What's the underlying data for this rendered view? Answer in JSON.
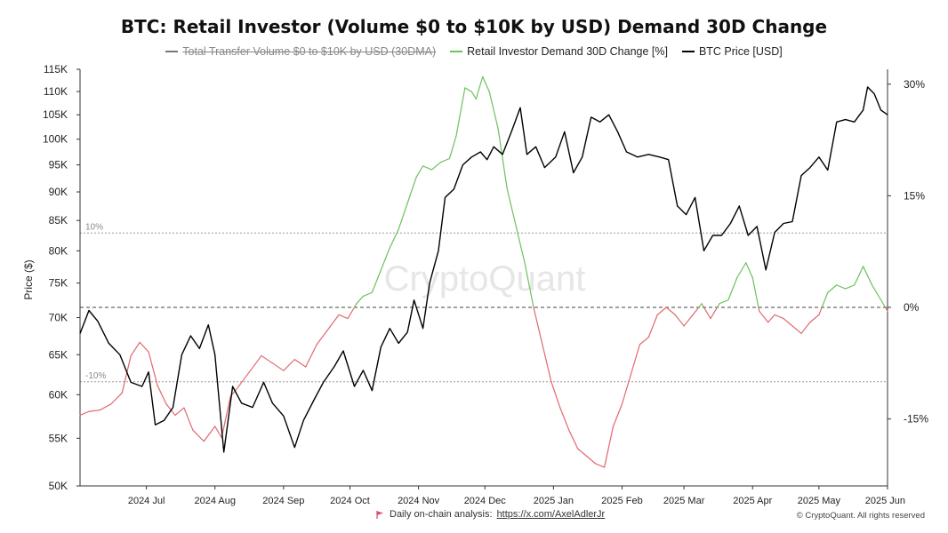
{
  "chart_data": {
    "type": "line",
    "title": "BTC: Retail Investor (Volume $0 to $10K by USD) Demand 30D Change",
    "ylabel": "Price ($)",
    "y_left": {
      "scale": "log",
      "range": [
        50000,
        115000
      ],
      "tick_values": [
        50000,
        55000,
        60000,
        65000,
        70000,
        75000,
        80000,
        85000,
        90000,
        95000,
        100000,
        105000,
        110000,
        115000
      ],
      "tick_labels": [
        "50K",
        "55K",
        "60K",
        "65K",
        "70K",
        "75K",
        "80K",
        "85K",
        "90K",
        "95K",
        "100K",
        "105K",
        "110K",
        "115K"
      ]
    },
    "y_right": {
      "scale": "linear",
      "range": [
        -24,
        32
      ],
      "tick_values": [
        30,
        15,
        0,
        -15
      ],
      "tick_labels": [
        "30%",
        "15%",
        "0%",
        "-15%"
      ]
    },
    "x_axis": {
      "range": [
        "2024-06-01",
        "2025-06-01"
      ],
      "tick_values": [
        "2024-07-01",
        "2024-08-01",
        "2024-09-01",
        "2024-10-01",
        "2024-11-01",
        "2024-12-01",
        "2025-01-01",
        "2025-02-01",
        "2025-03-01",
        "2025-04-01",
        "2025-05-01",
        "2025-06-01"
      ],
      "tick_labels": [
        "2024 Jul",
        "2024 Aug",
        "2024 Sep",
        "2024 Oct",
        "2024 Nov",
        "2024 Dec",
        "2025 Jan",
        "2025 Feb",
        "2025 Mar",
        "2025 Apr",
        "2025 May",
        "2025 Jun"
      ]
    },
    "reference_lines": [
      {
        "value": 10,
        "label": "10%",
        "style": "dotted"
      },
      {
        "value": 0,
        "label": "",
        "style": "dashed"
      },
      {
        "value": -10,
        "label": "-10%",
        "style": "dotted"
      }
    ],
    "grid": false,
    "legend_position": "top-center",
    "colors": {
      "price": "#000000",
      "demand_positive": "#6cc15c",
      "demand_negative": "#e0686d",
      "total_volume": "#777777",
      "reference": "#999999"
    },
    "series": [
      {
        "name": "Total Transfer Volume $0 to $10K by USD (30DMA)",
        "visible": false,
        "points": []
      },
      {
        "name": "Retail Investor Demand 30D Change [%]",
        "axis": "right",
        "points": [
          [
            "2024-06-01",
            -14.5
          ],
          [
            "2024-06-05",
            -14.0
          ],
          [
            "2024-06-10",
            -13.8
          ],
          [
            "2024-06-15",
            -13.0
          ],
          [
            "2024-06-20",
            -11.5
          ],
          [
            "2024-06-24",
            -6.5
          ],
          [
            "2024-06-28",
            -4.7
          ],
          [
            "2024-07-02",
            -6.0
          ],
          [
            "2024-07-06",
            -10.5
          ],
          [
            "2024-07-10",
            -13.0
          ],
          [
            "2024-07-14",
            -14.5
          ],
          [
            "2024-07-18",
            -13.5
          ],
          [
            "2024-07-22",
            -16.5
          ],
          [
            "2024-07-27",
            -18.0
          ],
          [
            "2024-08-01",
            -16.0
          ],
          [
            "2024-08-04",
            -17.5
          ],
          [
            "2024-08-08",
            -12.0
          ],
          [
            "2024-08-12",
            -10.5
          ],
          [
            "2024-08-17",
            -8.5
          ],
          [
            "2024-08-22",
            -6.5
          ],
          [
            "2024-08-27",
            -7.5
          ],
          [
            "2024-09-01",
            -8.5
          ],
          [
            "2024-09-06",
            -7.0
          ],
          [
            "2024-09-11",
            -8.0
          ],
          [
            "2024-09-16",
            -5.0
          ],
          [
            "2024-09-21",
            -3.0
          ],
          [
            "2024-09-26",
            -1.0
          ],
          [
            "2024-09-30",
            -1.5
          ],
          [
            "2024-10-04",
            0.5
          ],
          [
            "2024-10-07",
            1.5
          ],
          [
            "2024-10-11",
            2.0
          ],
          [
            "2024-10-15",
            5.0
          ],
          [
            "2024-10-19",
            8.0
          ],
          [
            "2024-10-23",
            10.5
          ],
          [
            "2024-10-27",
            14.0
          ],
          [
            "2024-10-31",
            17.5
          ],
          [
            "2024-11-03",
            19.0
          ],
          [
            "2024-11-07",
            18.5
          ],
          [
            "2024-11-11",
            19.5
          ],
          [
            "2024-11-15",
            20.0
          ],
          [
            "2024-11-18",
            23.0
          ],
          [
            "2024-11-22",
            29.5
          ],
          [
            "2024-11-25",
            29.0
          ],
          [
            "2024-11-27",
            28.0
          ],
          [
            "2024-11-30",
            31.0
          ],
          [
            "2024-12-03",
            29.0
          ],
          [
            "2024-12-07",
            24.0
          ],
          [
            "2024-12-11",
            16.0
          ],
          [
            "2024-12-15",
            11.0
          ],
          [
            "2024-12-19",
            6.0
          ],
          [
            "2024-12-23",
            0.0
          ],
          [
            "2024-12-27",
            -5.0
          ],
          [
            "2024-12-31",
            -10.0
          ],
          [
            "2025-01-04",
            -13.5
          ],
          [
            "2025-01-08",
            -16.5
          ],
          [
            "2025-01-12",
            -19.0
          ],
          [
            "2025-01-16",
            -20.0
          ],
          [
            "2025-01-20",
            -21.0
          ],
          [
            "2025-01-24",
            -21.5
          ],
          [
            "2025-01-28",
            -16.0
          ],
          [
            "2025-02-01",
            -13.0
          ],
          [
            "2025-02-05",
            -9.0
          ],
          [
            "2025-02-09",
            -5.0
          ],
          [
            "2025-02-13",
            -4.0
          ],
          [
            "2025-02-17",
            -1.0
          ],
          [
            "2025-02-21",
            0.0
          ],
          [
            "2025-02-25",
            -1.0
          ],
          [
            "2025-03-01",
            -2.5
          ],
          [
            "2025-03-05",
            -1.0
          ],
          [
            "2025-03-09",
            0.5
          ],
          [
            "2025-03-13",
            -1.5
          ],
          [
            "2025-03-17",
            0.5
          ],
          [
            "2025-03-21",
            1.0
          ],
          [
            "2025-03-25",
            4.0
          ],
          [
            "2025-03-29",
            6.0
          ],
          [
            "2025-04-01",
            4.0
          ],
          [
            "2025-04-04",
            -0.5
          ],
          [
            "2025-04-08",
            -2.0
          ],
          [
            "2025-04-11",
            -1.0
          ],
          [
            "2025-04-15",
            -1.5
          ],
          [
            "2025-04-19",
            -2.5
          ],
          [
            "2025-04-23",
            -3.5
          ],
          [
            "2025-04-27",
            -2.0
          ],
          [
            "2025-05-01",
            -1.0
          ],
          [
            "2025-05-05",
            2.0
          ],
          [
            "2025-05-09",
            3.0
          ],
          [
            "2025-05-13",
            2.5
          ],
          [
            "2025-05-17",
            3.0
          ],
          [
            "2025-05-21",
            5.5
          ],
          [
            "2025-05-25",
            3.0
          ],
          [
            "2025-05-29",
            1.0
          ],
          [
            "2025-06-01",
            -0.5
          ]
        ]
      },
      {
        "name": "BTC Price [USD]",
        "axis": "left",
        "points": [
          [
            "2024-06-01",
            67800
          ],
          [
            "2024-06-05",
            71000
          ],
          [
            "2024-06-09",
            69500
          ],
          [
            "2024-06-14",
            66500
          ],
          [
            "2024-06-19",
            65000
          ],
          [
            "2024-06-24",
            61500
          ],
          [
            "2024-06-29",
            61000
          ],
          [
            "2024-07-02",
            62800
          ],
          [
            "2024-07-05",
            56500
          ],
          [
            "2024-07-09",
            57000
          ],
          [
            "2024-07-13",
            58500
          ],
          [
            "2024-07-17",
            65000
          ],
          [
            "2024-07-21",
            67500
          ],
          [
            "2024-07-25",
            65800
          ],
          [
            "2024-07-29",
            69000
          ],
          [
            "2024-08-01",
            65000
          ],
          [
            "2024-08-05",
            53500
          ],
          [
            "2024-08-09",
            61000
          ],
          [
            "2024-08-13",
            59000
          ],
          [
            "2024-08-18",
            58500
          ],
          [
            "2024-08-23",
            61500
          ],
          [
            "2024-08-27",
            59000
          ],
          [
            "2024-09-01",
            57500
          ],
          [
            "2024-09-06",
            54000
          ],
          [
            "2024-09-10",
            57000
          ],
          [
            "2024-09-15",
            59500
          ],
          [
            "2024-09-19",
            61500
          ],
          [
            "2024-09-24",
            63500
          ],
          [
            "2024-09-28",
            65500
          ],
          [
            "2024-10-03",
            61000
          ],
          [
            "2024-10-07",
            63000
          ],
          [
            "2024-10-11",
            60500
          ],
          [
            "2024-10-15",
            66000
          ],
          [
            "2024-10-19",
            68500
          ],
          [
            "2024-10-23",
            66500
          ],
          [
            "2024-10-27",
            68000
          ],
          [
            "2024-10-30",
            72500
          ],
          [
            "2024-11-03",
            68500
          ],
          [
            "2024-11-06",
            75000
          ],
          [
            "2024-11-10",
            80000
          ],
          [
            "2024-11-13",
            89000
          ],
          [
            "2024-11-17",
            90500
          ],
          [
            "2024-11-21",
            95000
          ],
          [
            "2024-11-25",
            96500
          ],
          [
            "2024-11-29",
            97500
          ],
          [
            "2024-12-02",
            96000
          ],
          [
            "2024-12-05",
            98500
          ],
          [
            "2024-12-09",
            97000
          ],
          [
            "2024-12-13",
            101500
          ],
          [
            "2024-12-17",
            106500
          ],
          [
            "2024-12-20",
            97000
          ],
          [
            "2024-12-24",
            98500
          ],
          [
            "2024-12-28",
            94500
          ],
          [
            "2025-01-02",
            96500
          ],
          [
            "2025-01-06",
            101500
          ],
          [
            "2025-01-10",
            93500
          ],
          [
            "2025-01-14",
            96500
          ],
          [
            "2025-01-18",
            104500
          ],
          [
            "2025-01-22",
            103500
          ],
          [
            "2025-01-26",
            105000
          ],
          [
            "2025-01-30",
            101500
          ],
          [
            "2025-02-03",
            97500
          ],
          [
            "2025-02-08",
            96500
          ],
          [
            "2025-02-13",
            97000
          ],
          [
            "2025-02-18",
            96500
          ],
          [
            "2025-02-22",
            96000
          ],
          [
            "2025-02-26",
            87500
          ],
          [
            "2025-03-02",
            86000
          ],
          [
            "2025-03-06",
            89000
          ],
          [
            "2025-03-10",
            80000
          ],
          [
            "2025-03-14",
            82500
          ],
          [
            "2025-03-18",
            82500
          ],
          [
            "2025-03-22",
            84500
          ],
          [
            "2025-03-26",
            87500
          ],
          [
            "2025-03-30",
            82500
          ],
          [
            "2025-04-03",
            84000
          ],
          [
            "2025-04-07",
            77000
          ],
          [
            "2025-04-11",
            83000
          ],
          [
            "2025-04-15",
            84500
          ],
          [
            "2025-04-19",
            84800
          ],
          [
            "2025-04-23",
            93000
          ],
          [
            "2025-04-27",
            94500
          ],
          [
            "2025-05-01",
            96500
          ],
          [
            "2025-05-05",
            94000
          ],
          [
            "2025-05-09",
            103500
          ],
          [
            "2025-05-13",
            104000
          ],
          [
            "2025-05-17",
            103500
          ],
          [
            "2025-05-21",
            106000
          ],
          [
            "2025-05-23",
            111000
          ],
          [
            "2025-05-26",
            109500
          ],
          [
            "2025-05-29",
            106000
          ],
          [
            "2025-06-01",
            105000
          ]
        ]
      }
    ]
  },
  "legend": {
    "items": [
      {
        "label": "Total Transfer Volume $0 to $10K by USD (30DMA)",
        "color": "#777777",
        "hidden": true
      },
      {
        "label": "Retail Investor Demand 30D Change [%]",
        "color": "#6cc15c",
        "hidden": false
      },
      {
        "label": "BTC Price [USD]",
        "color": "#000000",
        "hidden": false
      }
    ]
  },
  "watermark": "CryptoQuant",
  "footer": {
    "analysis_prefix": "Daily on-chain analysis:",
    "analysis_link": "https://x.com/AxelAdlerJr",
    "copyright": "© CryptoQuant. All rights reserved"
  }
}
